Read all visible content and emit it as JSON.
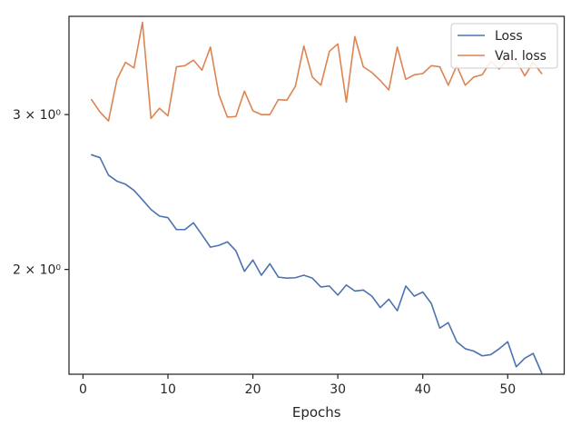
{
  "chart_data": {
    "type": "line",
    "title": "",
    "xlabel": "Epochs",
    "ylabel": "",
    "yscale": "log",
    "xlim": [
      -1.65,
      56.65
    ],
    "ylim": [
      1.52,
      3.88
    ],
    "xticks": [
      0,
      10,
      20,
      30,
      40,
      50
    ],
    "yticks": [
      {
        "value": 2,
        "label": "2 × 10⁰"
      },
      {
        "value": 3,
        "label": "3 × 10⁰"
      }
    ],
    "grid": false,
    "legend_position": "top-right",
    "series": [
      {
        "name": "Loss",
        "color": "#4c72b0",
        "x": [
          1,
          2,
          3,
          4,
          5,
          6,
          7,
          8,
          9,
          10,
          11,
          12,
          13,
          14,
          15,
          16,
          17,
          18,
          19,
          20,
          21,
          22,
          23,
          24,
          25,
          26,
          27,
          28,
          29,
          30,
          31,
          32,
          33,
          34,
          35,
          36,
          37,
          38,
          39,
          40,
          41,
          42,
          43,
          44,
          45,
          46,
          47,
          48,
          49,
          50,
          51,
          52,
          53,
          54
        ],
        "values": [
          2.7,
          2.68,
          2.56,
          2.52,
          2.5,
          2.46,
          2.4,
          2.34,
          2.3,
          2.29,
          2.22,
          2.22,
          2.26,
          2.19,
          2.12,
          2.13,
          2.15,
          2.1,
          1.99,
          2.05,
          1.97,
          2.03,
          1.96,
          1.955,
          1.957,
          1.97,
          1.955,
          1.91,
          1.915,
          1.87,
          1.92,
          1.89,
          1.895,
          1.865,
          1.81,
          1.85,
          1.795,
          1.915,
          1.865,
          1.885,
          1.83,
          1.715,
          1.74,
          1.655,
          1.625,
          1.615,
          1.595,
          1.6,
          1.625,
          1.655,
          1.55,
          1.585,
          1.605,
          1.525
        ]
      },
      {
        "name": "Val. loss",
        "color": "#dd8452",
        "x": [
          1,
          2,
          3,
          4,
          5,
          6,
          7,
          8,
          9,
          10,
          11,
          12,
          13,
          14,
          15,
          16,
          17,
          18,
          19,
          20,
          21,
          22,
          23,
          24,
          25,
          26,
          27,
          28,
          29,
          30,
          31,
          32,
          33,
          34,
          35,
          36,
          37,
          38,
          39,
          40,
          41,
          42,
          43,
          44,
          45,
          46,
          47,
          48,
          49,
          50,
          51,
          52,
          53,
          54
        ],
        "values": [
          3.12,
          3.02,
          2.95,
          3.29,
          3.44,
          3.39,
          3.82,
          2.97,
          3.05,
          2.99,
          3.4,
          3.41,
          3.46,
          3.37,
          3.58,
          3.16,
          2.98,
          2.985,
          3.19,
          3.03,
          3.0,
          3.0,
          3.12,
          3.115,
          3.23,
          3.59,
          3.31,
          3.24,
          3.54,
          3.61,
          3.1,
          3.68,
          3.4,
          3.35,
          3.28,
          3.2,
          3.58,
          3.29,
          3.33,
          3.34,
          3.41,
          3.4,
          3.24,
          3.41,
          3.24,
          3.31,
          3.33,
          3.45,
          3.38,
          3.47,
          3.46,
          3.32,
          3.44,
          3.34
        ]
      }
    ]
  }
}
